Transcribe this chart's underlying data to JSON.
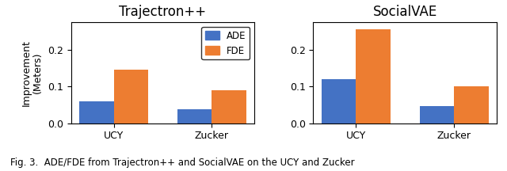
{
  "trajectron": {
    "title": "Trajectron++",
    "groups": [
      "UCY",
      "Zucker"
    ],
    "ADE": [
      0.06,
      0.038
    ],
    "FDE": [
      0.145,
      0.09
    ]
  },
  "socialvae": {
    "title": "SocialVAE",
    "groups": [
      "UCY",
      "Zucker"
    ],
    "ADE": [
      0.12,
      0.047
    ],
    "FDE": [
      0.255,
      0.1
    ]
  },
  "color_ADE": "#4472C4",
  "color_FDE": "#ED7D31",
  "ylabel": "Improvement\n(Meters)",
  "legend_labels": [
    "ADE",
    "FDE"
  ],
  "bar_width": 0.35,
  "ylim": [
    0,
    0.275
  ],
  "yticks": [
    0.0,
    0.1,
    0.2
  ],
  "caption": "Fig. 3.  ADE/FDE from Trajectron++ and SocialVAE on the UCY and Zucker",
  "caption_fontsize": 8.5,
  "title_fontsize": 12,
  "ylabel_fontsize": 9,
  "tick_fontsize": 9,
  "legend_fontsize": 8.5
}
